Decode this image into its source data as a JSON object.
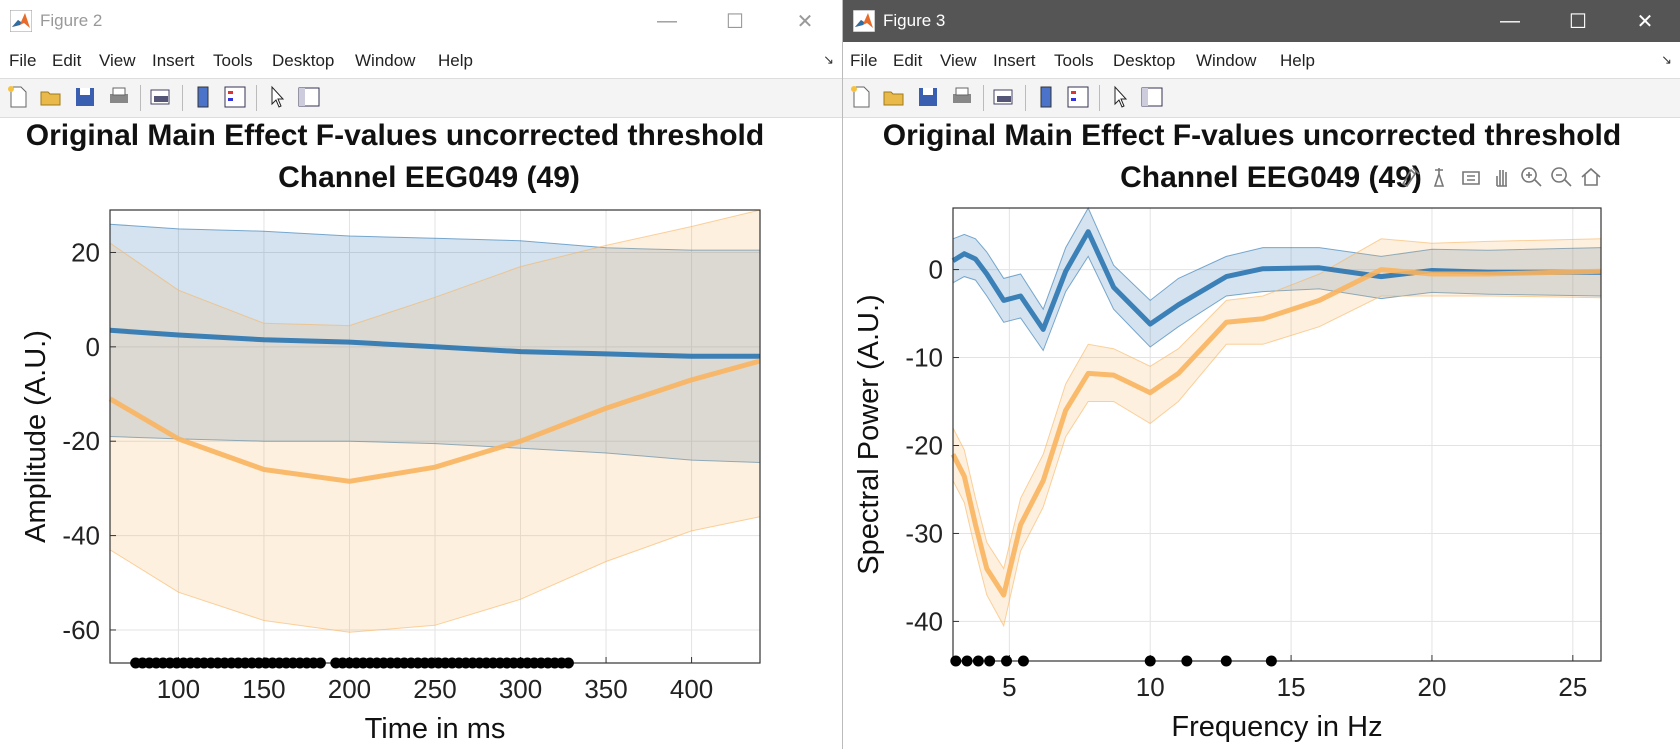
{
  "windows": [
    {
      "title": "Figure 2",
      "active": false,
      "menu": [
        "File",
        "Edit",
        "View",
        "Insert",
        "Tools",
        "Desktop",
        "Window",
        "Help"
      ],
      "plot_title_line1": "Original Main Effect F-values uncorrected threshold",
      "plot_title_line2": "Channel EEG049 (49)",
      "xlabel": "Time in ms",
      "ylabel": "Amplitude (A.U.)"
    },
    {
      "title": "Figure 3",
      "active": true,
      "menu": [
        "File",
        "Edit",
        "View",
        "Insert",
        "Tools",
        "Desktop",
        "Window",
        "Help"
      ],
      "plot_title_line1": "Original Main Effect F-values uncorrected threshold",
      "plot_title_line2": "Channel EEG049 (49)",
      "xlabel": "Frequency in Hz",
      "ylabel": "Spectral Power (A.U.)"
    }
  ],
  "toolbar_icons": [
    "new-file-icon",
    "open-folder-icon",
    "save-icon",
    "print-icon",
    "print-preview-icon",
    "colorbar-icon",
    "legend-icon",
    "pointer-icon",
    "property-inspector-icon"
  ],
  "axes_toolbar_icons": [
    "brush-icon",
    "data-cursor-icon",
    "restore-view-icon",
    "pan-icon",
    "zoom-in-icon",
    "zoom-out-icon",
    "home-icon"
  ],
  "colors": {
    "blue": "#2a74b0",
    "orange": "#f9b45f",
    "blue_fill": "#c5dcef",
    "orange_fill": "#fde2bf",
    "overlap_fill": "#d9d9d1"
  },
  "chart_data": [
    {
      "type": "line",
      "xlim": [
        60,
        440
      ],
      "ylim": [
        -67,
        29
      ],
      "xticks": [
        100,
        150,
        200,
        250,
        300,
        350,
        400
      ],
      "yticks": [
        -60,
        -40,
        -20,
        0,
        20
      ],
      "grid": true,
      "series": [
        {
          "color": "blue",
          "x": [
            60,
            100,
            150,
            200,
            250,
            300,
            350,
            400,
            440
          ],
          "y": [
            3.5,
            2.5,
            1.5,
            1,
            0,
            -1,
            -1.5,
            -2,
            -2
          ],
          "upper": [
            26,
            25,
            24.5,
            23.5,
            23,
            22.5,
            21,
            20.5,
            20.5
          ],
          "lower": [
            -19,
            -19.5,
            -20,
            -20,
            -20.5,
            -21.5,
            -22.5,
            -24,
            -24.5
          ]
        },
        {
          "color": "orange",
          "x": [
            60,
            100,
            150,
            200,
            250,
            300,
            350,
            400,
            440
          ],
          "y": [
            -11,
            -19.5,
            -26,
            -28.5,
            -25.5,
            -20,
            -13,
            -7,
            -3
          ],
          "upper": [
            22,
            12,
            5,
            4.5,
            10.5,
            17,
            21.5,
            25.5,
            29
          ],
          "lower": [
            -43,
            -52,
            -58,
            -60.5,
            -59,
            -53.5,
            -45.5,
            -39,
            -36
          ]
        }
      ],
      "markers_y": -67,
      "markers_x": [
        75,
        79,
        83,
        87,
        91,
        95,
        99,
        103,
        107,
        111,
        115,
        119,
        123,
        127,
        131,
        135,
        139,
        143,
        147,
        151,
        155,
        159,
        163,
        167,
        171,
        175,
        179,
        183,
        192,
        196,
        200,
        204,
        208,
        212,
        216,
        220,
        224,
        228,
        232,
        236,
        240,
        244,
        248,
        252,
        256,
        260,
        264,
        268,
        272,
        276,
        280,
        284,
        288,
        292,
        296,
        300,
        304,
        308,
        312,
        316,
        320,
        324,
        328
      ]
    },
    {
      "type": "line",
      "xlim": [
        3,
        26
      ],
      "ylim": [
        -44.5,
        7
      ],
      "xticks": [
        5,
        10,
        15,
        20,
        25
      ],
      "yticks": [
        -40,
        -30,
        -20,
        -10,
        0
      ],
      "grid": true,
      "series": [
        {
          "color": "blue",
          "x": [
            3,
            3.4,
            3.8,
            4.2,
            4.8,
            5.4,
            6.2,
            7,
            7.8,
            8.7,
            10,
            11,
            12.7,
            14,
            16,
            18.2,
            20,
            22,
            26
          ],
          "y": [
            1,
            1.8,
            1.2,
            -0.5,
            -3.5,
            -3,
            -6.8,
            -0.2,
            4.3,
            -2,
            -6.2,
            -4,
            -0.8,
            0.1,
            0.2,
            -0.8,
            -0.1,
            -0.3,
            -0.3
          ],
          "upper": [
            3.5,
            4,
            3.5,
            2,
            -1,
            -0.5,
            -4.5,
            2.5,
            7,
            0.5,
            -3.5,
            -1,
            1.5,
            2.5,
            2.5,
            1.5,
            2.3,
            2.2,
            2.5
          ],
          "lower": [
            -1.5,
            -0.8,
            -1.2,
            -3,
            -6,
            -5.5,
            -9.2,
            -2.5,
            1.5,
            -4.5,
            -8.8,
            -6.5,
            -3,
            -2.5,
            -2.2,
            -3.3,
            -2.6,
            -2.8,
            -3
          ]
        },
        {
          "color": "orange",
          "x": [
            3,
            3.4,
            3.8,
            4.2,
            4.8,
            5.4,
            6.2,
            7,
            7.8,
            8.7,
            10,
            11,
            12.7,
            14,
            16,
            18.2,
            20,
            22,
            26
          ],
          "y": [
            -21,
            -23.5,
            -29,
            -34,
            -37,
            -29,
            -24,
            -16,
            -11.8,
            -12,
            -14,
            -11.8,
            -6,
            -5.6,
            -3.5,
            0,
            -0.5,
            -0.5,
            -0.2
          ],
          "upper": [
            -18,
            -20.5,
            -26,
            -31,
            -34,
            -26,
            -21,
            -13,
            -8.5,
            -9,
            -11,
            -9,
            -3.5,
            -3,
            -0.5,
            3.5,
            3,
            3.2,
            3.5
          ],
          "lower": [
            -24,
            -26.5,
            -32,
            -37,
            -40.5,
            -32,
            -27,
            -19,
            -15,
            -15,
            -17.5,
            -15,
            -8.5,
            -8.5,
            -6.5,
            -3,
            -3,
            -3,
            -3.2
          ]
        }
      ],
      "markers_y": -44.5,
      "markers_x": [
        3.1,
        3.5,
        3.9,
        4.3,
        4.9,
        5.5,
        10,
        11.3,
        12.7,
        14.3
      ]
    }
  ]
}
